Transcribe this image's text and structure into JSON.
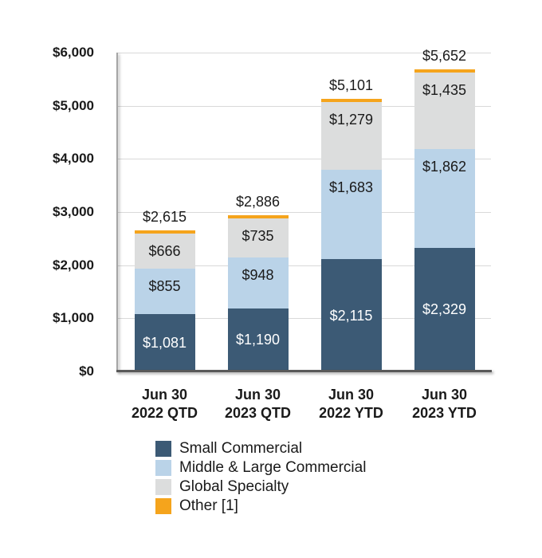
{
  "colors": {
    "background": "#ffffff",
    "text": "#1a1a1a",
    "gridline": "#d9d9d9",
    "axis_vertical": "#a6a6a6",
    "axis_horizontal": "#595959"
  },
  "chart_data": {
    "type": "bar",
    "stacked": true,
    "title": "",
    "xlabel": "",
    "ylabel": "",
    "grid": true,
    "categories": [
      "Jun 30\n2022 QTD",
      "Jun 30\n2023 QTD",
      "Jun 30\n2022 YTD",
      "Jun 30\n2023 YTD"
    ],
    "series": [
      {
        "name": "Small Commercial",
        "color": "#3c5a75",
        "label_color": "#ffffff",
        "label_placement": "center",
        "values": [
          1081,
          1190,
          2115,
          2329
        ],
        "labels": [
          "$1,081",
          "$1,190",
          "$2,115",
          "$2,329"
        ]
      },
      {
        "name": "Middle & Large Commercial",
        "color": "#bad3e8",
        "label_color": "#1a1a1a",
        "label_placement": "inside-end",
        "values": [
          855,
          948,
          1683,
          1862
        ],
        "labels": [
          "$855",
          "$948",
          "$1,683",
          "$1,862"
        ]
      },
      {
        "name": "Global Specialty",
        "color": "#dcdddd",
        "label_color": "#1a1a1a",
        "label_placement": "inside-end",
        "values": [
          666,
          735,
          1279,
          1435
        ],
        "labels": [
          "$666",
          "$735",
          "$1,279",
          "$1,435"
        ]
      },
      {
        "name": "Other [1]",
        "color": "#f5a41c",
        "label_color": "#1a1a1a",
        "label_placement": "none",
        "values": [
          13,
          13,
          24,
          26
        ],
        "labels": null
      }
    ],
    "totals": {
      "values": [
        2615,
        2886,
        5101,
        5652
      ],
      "labels": [
        "$2,615",
        "$2,886",
        "$5,101",
        "$5,652"
      ]
    },
    "y_axis": {
      "min": 0,
      "max": 6000,
      "step": 1000,
      "tick_labels": [
        "$6,000",
        "$5,000",
        "$4,000",
        "$3,000",
        "$2,000",
        "$1,000",
        "$0"
      ]
    },
    "legend_position": "bottom-left"
  }
}
